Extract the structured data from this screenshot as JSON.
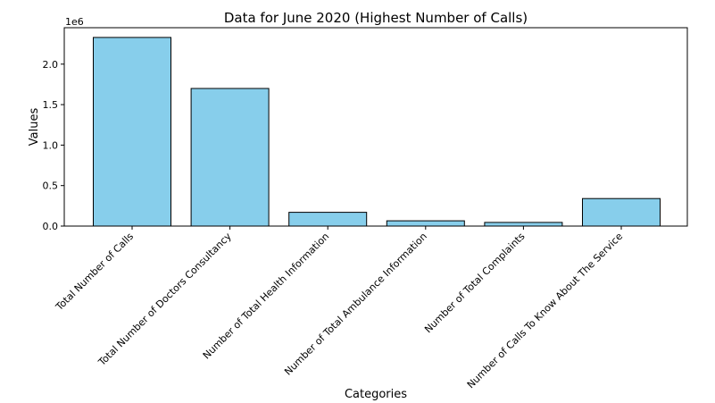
{
  "chart_data": {
    "type": "bar",
    "title": "Data for June 2020 (Highest Number of Calls)",
    "xlabel": "Categories",
    "ylabel": "Values",
    "scale_label": "1e6",
    "categories": [
      "Total Number of Calls",
      "Total Number of Doctors Consultancy",
      "Number of Total Health Information",
      "Number of Total Ambulance Information",
      "Number of Total Complaints",
      "Number of Calls To Know About The Service"
    ],
    "values": [
      2330000,
      1700000,
      170000,
      65000,
      45000,
      340000
    ],
    "ylim": [
      0,
      2450000
    ],
    "yticks": [
      0,
      500000,
      1000000,
      1500000,
      2000000
    ],
    "ytick_labels": [
      "0.0",
      "0.5",
      "1.0",
      "1.5",
      "2.0"
    ],
    "grid": false,
    "colors": {
      "bar_fill": "#87ceeb",
      "bar_edge": "#000000"
    }
  }
}
